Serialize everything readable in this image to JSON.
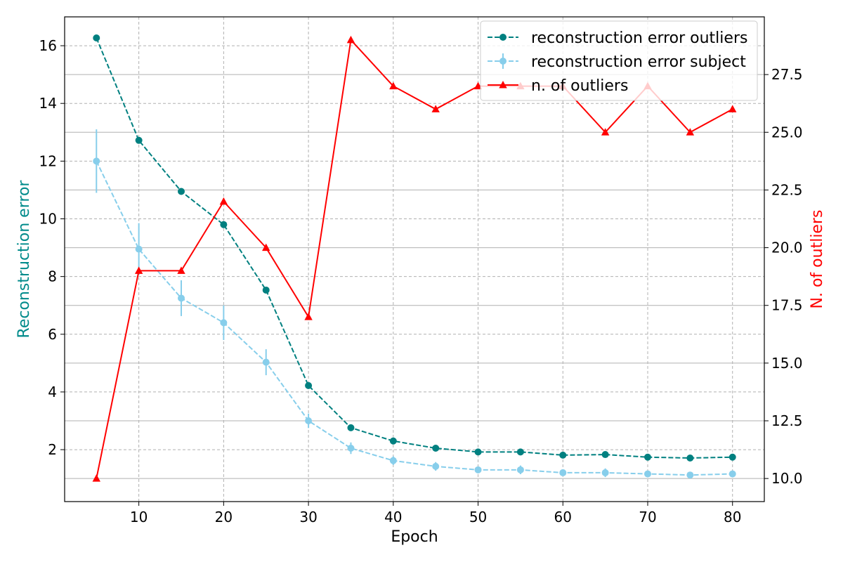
{
  "chart_data": {
    "type": "line",
    "xlabel": "Epoch",
    "ylabel_left": "Reconstruction error",
    "ylabel_right": "N. of outliers",
    "xlim": [
      1.25,
      83.75
    ],
    "ylim_left": [
      0.2,
      17.0
    ],
    "ylim_right": [
      9.0,
      30.0
    ],
    "x_ticks": [
      10,
      20,
      30,
      40,
      50,
      60,
      70,
      80
    ],
    "y_left_ticks": [
      2,
      4,
      6,
      8,
      10,
      12,
      14,
      16
    ],
    "y_right_ticks": [
      10.0,
      12.5,
      15.0,
      17.5,
      20.0,
      22.5,
      25.0,
      27.5
    ],
    "x_tick_labels": [
      "10",
      "20",
      "30",
      "40",
      "50",
      "60",
      "70",
      "80"
    ],
    "y_left_tick_labels": [
      "2",
      "4",
      "6",
      "8",
      "10",
      "12",
      "14",
      "16"
    ],
    "y_right_tick_labels": [
      "10.0",
      "12.5",
      "15.0",
      "17.5",
      "20.0",
      "22.5",
      "25.0",
      "27.5"
    ],
    "grid": true,
    "legend_position": "top-right",
    "x": [
      5,
      10,
      15,
      20,
      25,
      30,
      35,
      40,
      45,
      50,
      55,
      60,
      65,
      70,
      75,
      80
    ],
    "series": [
      {
        "name": "reconstruction error outliers",
        "axis": "left",
        "color": "#008080",
        "style": "dashed",
        "marker": "circle",
        "values": [
          16.27,
          12.72,
          10.95,
          9.8,
          7.53,
          4.22,
          2.76,
          2.3,
          2.05,
          1.92,
          1.92,
          1.81,
          1.83,
          1.74,
          1.71,
          1.74
        ]
      },
      {
        "name": "reconstruction error subject",
        "axis": "left",
        "color": "#87ceeb",
        "style": "dashed",
        "marker": "circle",
        "values": [
          12.0,
          8.95,
          7.25,
          6.4,
          5.03,
          3.0,
          2.05,
          1.62,
          1.42,
          1.3,
          1.3,
          1.2,
          1.2,
          1.16,
          1.12,
          1.16
        ],
        "errors": [
          1.1,
          0.9,
          0.62,
          0.6,
          0.45,
          0.25,
          0.2,
          0.15,
          0.15,
          0.1,
          0.15,
          0.1,
          0.15,
          0.1,
          0.1,
          0.1
        ]
      },
      {
        "name": "n. of outliers",
        "axis": "right",
        "color": "#ff0000",
        "style": "solid",
        "marker": "triangle",
        "values": [
          10,
          19,
          19,
          22,
          20,
          17,
          29,
          27,
          26,
          27,
          27,
          27,
          25,
          27,
          25,
          26
        ]
      }
    ]
  }
}
